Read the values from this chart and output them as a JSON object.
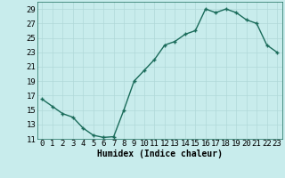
{
  "x": [
    0,
    1,
    2,
    3,
    4,
    5,
    6,
    7,
    8,
    9,
    10,
    11,
    12,
    13,
    14,
    15,
    16,
    17,
    18,
    19,
    20,
    21,
    22,
    23
  ],
  "y": [
    16.5,
    15.5,
    14.5,
    14,
    12.5,
    11.5,
    11.2,
    11.3,
    15,
    19,
    20.5,
    22,
    24,
    24.5,
    25.5,
    26,
    29,
    28.5,
    29,
    28.5,
    27.5,
    27,
    24,
    23
  ],
  "line_color": "#1a6b5a",
  "bg_color": "#c8ecec",
  "grid_color": "#b0d8d8",
  "xlabel": "Humidex (Indice chaleur)",
  "xlabel_fontsize": 7,
  "tick_fontsize": 6.5,
  "ylim": [
    11,
    30
  ],
  "yticks": [
    11,
    13,
    15,
    17,
    19,
    21,
    23,
    25,
    27,
    29
  ],
  "xlim": [
    -0.5,
    23.5
  ],
  "xticks": [
    0,
    1,
    2,
    3,
    4,
    5,
    6,
    7,
    8,
    9,
    10,
    11,
    12,
    13,
    14,
    15,
    16,
    17,
    18,
    19,
    20,
    21,
    22,
    23
  ]
}
